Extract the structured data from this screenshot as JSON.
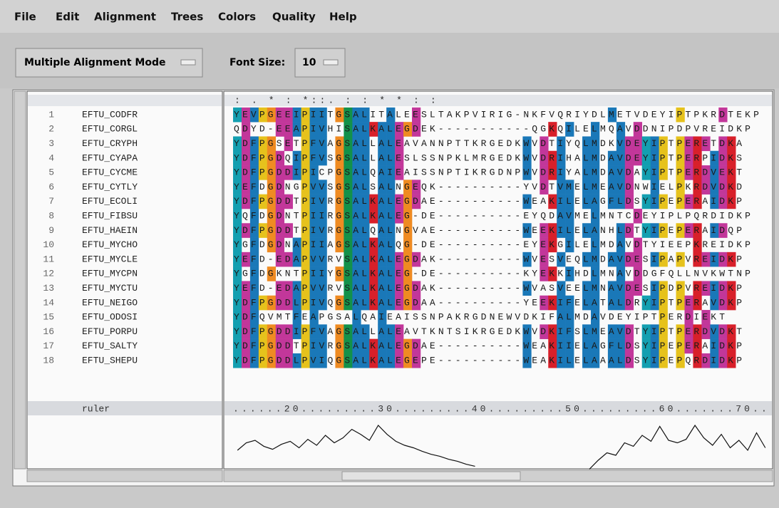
{
  "menu": [
    "File",
    "Edit",
    "Alignment",
    "Trees",
    "Colors",
    "Quality",
    "Help"
  ],
  "toolbar": {
    "mode": "Multiple Alignment Mode",
    "font_size_label": "Font Size:",
    "font_size": "10"
  },
  "conservation": "  :   .   * : *::.                   :  :  *    *  :      :",
  "sequences": [
    {
      "number": "1",
      "name": "EFTU_CODFR",
      "residues": "YEVPGEEIPIITGSALITALEESLTAKPVIRIG-NKFVQRIYDLMETVDEYIPTPKRDTEKP"
    },
    {
      "number": "2",
      "name": "EFTU_CORGL",
      "residues": "QDYD-EEAPIVHISALKALEGDEK-----------QGKQILELMQAVDDNIPDPVREIDKP"
    },
    {
      "number": "3",
      "name": "EFTU_CRYPH",
      "residues": "YDFPGSETPFVAGSALLALEAVANNPTTKRGEDKWVDTIYQLMDKVDEYIPTPERETDKA"
    },
    {
      "number": "4",
      "name": "EFTU_CYAPA",
      "residues": "YDFPGDQIPFVSGSALLALESLSSNPKLMRGEDKWVDRIHALMDAVDEYIPTPERPIDKS"
    },
    {
      "number": "5",
      "name": "EFTU_CYCME",
      "residues": "YDFPGDDIPICPGSALQAIEAISSNPTIKRGDNPWVDRIYALMDAVDAYIPTPERDVEKT"
    },
    {
      "number": "6",
      "name": "EFTU_CYTLY",
      "residues": "YEFDGDNGPVVSGSALSALNGEQK----------YVDTVMELMEAVDNWIELPKRDVDKD"
    },
    {
      "number": "7",
      "name": "EFTU_ECOLI",
      "residues": "YDFPGDDTPIVRGSALKALEGDAE----------WEAKILELAGFLDSYIPEPERAIDKP"
    },
    {
      "number": "8",
      "name": "EFTU_FIBSU",
      "residues": "YQFDGDNTPIIRGSALKALEG-DE----------EYQDAVMELMNTCDEYIPLPQRDIDKP"
    },
    {
      "number": "9",
      "name": "EFTU_HAEIN",
      "residues": "YDFPGDDTPIVRGSALQALNGVAE----------WEEKILELANHLDTYIPEPERAIDQP"
    },
    {
      "number": "10",
      "name": "EFTU_MYCHO",
      "residues": "YGFDGDNAPIIAGSALKALQG-DE----------EYEKGILELMDAVDTYIEEPKREIDKP"
    },
    {
      "number": "11",
      "name": "EFTU_MYCLE",
      "residues": "YEFD-EDAPVVRVSALKALEGDAK----------WVESVEQLMDAVDESIPAPVREIDKP"
    },
    {
      "number": "12",
      "name": "EFTU_MYCPN",
      "residues": "YGFDGKNTPIIYGSALKALEG-DE----------KYEKKIHDLMNAVDDGFQLLNVKWTNP"
    },
    {
      "number": "13",
      "name": "EFTU_MYCTU",
      "residues": "YEFD-EDAPVVRVSALKALEGDAK----------WVASVEELMNAVDESIPDPVREIDKP"
    },
    {
      "number": "14",
      "name": "EFTU_NEIGO",
      "residues": "YDFPGDDLPIVQGSALKALEGDAA----------YEEKIFELATALDRYIPTPERAVDKP"
    },
    {
      "number": "15",
      "name": "EFTU_ODOSI",
      "residues": "YDFQVMTFEAPGSALQAIEAISSNPAKRGDNEWVDKIFALMDAVDEYIPTPERDIEKT"
    },
    {
      "number": "16",
      "name": "EFTU_PORPU",
      "residues": "YDFPGDDIPFVAGSALLALEAVTKNTSIKRGEDKWVDKIFSLMEAVDTYIPTPERDVDKT"
    },
    {
      "number": "17",
      "name": "EFTU_SALTY",
      "residues": "YDFPGDDTPIVRGSALKALEGDAE----------WEAKIIELAGFLDSYIPEPERAIDKP"
    },
    {
      "number": "18",
      "name": "EFTU_SHEPU",
      "residues": "YDFPGDDLPVIQGSALKALEGEPE----------WEAKILELAAALDSYIPEPQRDIDKP"
    }
  ],
  "ruler_label": "ruler",
  "ruler": "......20.........30.........40.........50.........60.......70..",
  "quality": [
    40,
    55,
    60,
    48,
    42,
    52,
    58,
    45,
    62,
    50,
    70,
    55,
    65,
    82,
    72,
    60,
    90,
    72,
    58,
    50,
    45,
    38,
    32,
    28,
    22,
    18,
    12,
    8,
    null,
    null,
    null,
    null,
    null,
    null,
    null,
    null,
    null,
    null,
    null,
    null,
    2,
    20,
    35,
    30,
    55,
    48,
    70,
    58,
    88,
    60,
    55,
    62,
    90,
    65,
    50,
    72,
    45,
    60,
    40,
    75,
    45
  ]
}
